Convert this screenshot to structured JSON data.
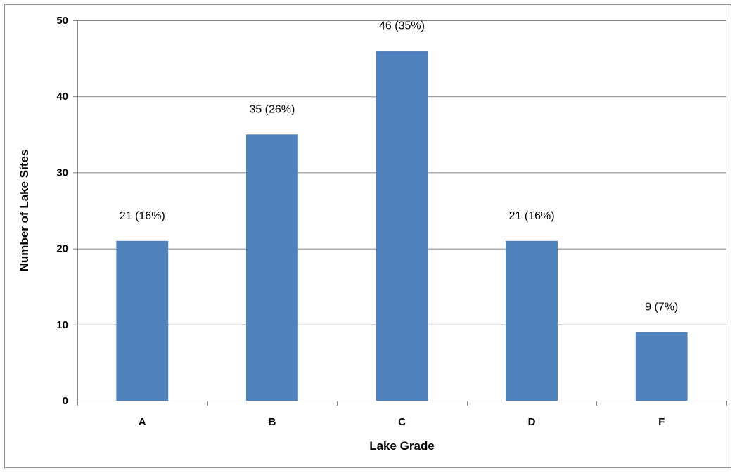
{
  "chart_data": {
    "type": "bar",
    "title": "",
    "xlabel": "Lake Grade",
    "ylabel": "Number of Lake Sites",
    "categories": [
      "A",
      "B",
      "C",
      "D",
      "F"
    ],
    "values": [
      21,
      35,
      46,
      21,
      9
    ],
    "data_labels": [
      "21 (16%)",
      "35 (26%)",
      "46 (35%)",
      "21 (16%)",
      "9 (7%)"
    ],
    "ylim": [
      0,
      50
    ],
    "yticks": [
      0,
      10,
      20,
      30,
      40,
      50
    ],
    "grid": true,
    "legend": "none",
    "bar_color": "#4f81bd",
    "gridline_color": "#868686"
  }
}
